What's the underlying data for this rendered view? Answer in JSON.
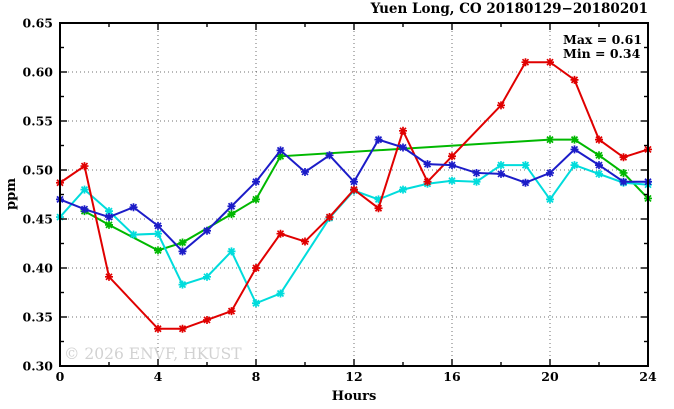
{
  "watermark": "© 2026 ENVF, HKUST",
  "chart_data": {
    "type": "line",
    "title": "Yuen Long, CO 20180129−20180201",
    "xlabel": "Hours",
    "ylabel": "ppm",
    "xlim": [
      0,
      24
    ],
    "ylim": [
      0.3,
      0.65
    ],
    "grid": true,
    "legend": "none",
    "annotations": [
      "Max = 0.61",
      "Min = 0.34"
    ],
    "x_ticks": [
      0,
      4,
      8,
      12,
      16,
      20,
      24
    ],
    "x_minor_ticks": [
      2,
      6,
      10,
      14,
      18,
      22
    ],
    "y_ticks": [
      0.3,
      0.35,
      0.4,
      0.45,
      0.5,
      0.55,
      0.6,
      0.65
    ],
    "y_minor_ticks": [
      0.325,
      0.375,
      0.425,
      0.475,
      0.525,
      0.575,
      0.625
    ],
    "grid_x": [
      4,
      8,
      12,
      16,
      20
    ],
    "grid_y": [
      0.35,
      0.4,
      0.45,
      0.5,
      0.55,
      0.6
    ],
    "series": [
      {
        "name": "green",
        "color": "#00b800",
        "points": [
          [
            1,
            0.458
          ],
          [
            2,
            0.444
          ],
          [
            4,
            0.418
          ],
          [
            5,
            0.426
          ],
          [
            7,
            0.455
          ],
          [
            8,
            0.47
          ],
          [
            9,
            0.514
          ],
          [
            20,
            0.531
          ],
          [
            21,
            0.531
          ],
          [
            22,
            0.515
          ],
          [
            23,
            0.497
          ],
          [
            24,
            0.471
          ]
        ]
      },
      {
        "name": "cyan",
        "color": "#00dcdc",
        "points": [
          [
            0,
            0.452
          ],
          [
            1,
            0.48
          ],
          [
            2,
            0.458
          ],
          [
            3,
            0.434
          ],
          [
            4,
            0.435
          ],
          [
            5,
            0.383
          ],
          [
            6,
            0.391
          ],
          [
            7,
            0.417
          ],
          [
            8,
            0.364
          ],
          [
            9,
            0.374
          ],
          [
            11,
            0.451
          ],
          [
            12,
            0.479
          ],
          [
            13,
            0.47
          ],
          [
            14,
            0.48
          ],
          [
            15,
            0.486
          ],
          [
            16,
            0.489
          ],
          [
            17,
            0.488
          ],
          [
            18,
            0.505
          ],
          [
            19,
            0.505
          ],
          [
            20,
            0.47
          ],
          [
            21,
            0.505
          ],
          [
            22,
            0.496
          ],
          [
            23,
            0.487
          ],
          [
            24,
            0.485
          ]
        ]
      },
      {
        "name": "red",
        "color": "#e00000",
        "points": [
          [
            0,
            0.487
          ],
          [
            1,
            0.504
          ],
          [
            2,
            0.391
          ],
          [
            4,
            0.338
          ],
          [
            5,
            0.338
          ],
          [
            6,
            0.347
          ],
          [
            7,
            0.356
          ],
          [
            8,
            0.4
          ],
          [
            9,
            0.435
          ],
          [
            10,
            0.427
          ],
          [
            11,
            0.452
          ],
          [
            12,
            0.48
          ],
          [
            13,
            0.461
          ],
          [
            14,
            0.54
          ],
          [
            15,
            0.488
          ],
          [
            16,
            0.514
          ],
          [
            18,
            0.566
          ],
          [
            19,
            0.61
          ],
          [
            20,
            0.61
          ],
          [
            21,
            0.592
          ],
          [
            22,
            0.531
          ],
          [
            23,
            0.513
          ],
          [
            24,
            0.521
          ]
        ]
      },
      {
        "name": "blue",
        "color": "#1c1cc8",
        "points": [
          [
            0,
            0.47
          ],
          [
            1,
            0.46
          ],
          [
            2,
            0.452
          ],
          [
            3,
            0.462
          ],
          [
            4,
            0.443
          ],
          [
            5,
            0.417
          ],
          [
            6,
            0.438
          ],
          [
            7,
            0.463
          ],
          [
            8,
            0.488
          ],
          [
            9,
            0.52
          ],
          [
            10,
            0.498
          ],
          [
            11,
            0.515
          ],
          [
            12,
            0.488
          ],
          [
            13,
            0.531
          ],
          [
            14,
            0.523
          ],
          [
            15,
            0.506
          ],
          [
            16,
            0.505
          ],
          [
            17,
            0.497
          ],
          [
            18,
            0.496
          ],
          [
            19,
            0.487
          ],
          [
            20,
            0.497
          ],
          [
            21,
            0.521
          ],
          [
            22,
            0.505
          ],
          [
            23,
            0.488
          ],
          [
            24,
            0.488
          ]
        ]
      }
    ]
  }
}
